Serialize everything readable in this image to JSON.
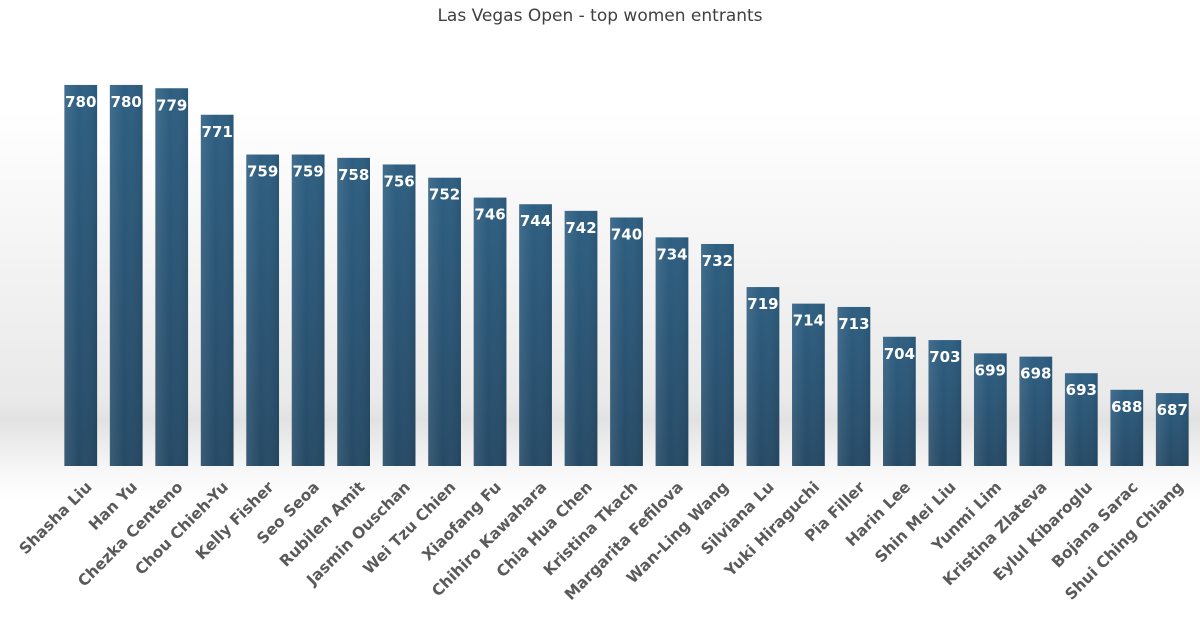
{
  "chart_data": {
    "type": "bar",
    "title": "Las Vegas Open - top women entrants",
    "xlabel": "",
    "ylabel": "",
    "categories": [
      "Shasha Liu",
      "Han Yu",
      "Chezka Centeno",
      "Chou Chieh-Yu",
      "Kelly Fisher",
      "Seo Seoa",
      "Rubilen Amit",
      "Jasmin Ouschan",
      "Wei Tzu Chien",
      "Xiaofang Fu",
      "Chihiro Kawahara",
      "Chia Hua Chen",
      "Kristina Tkach",
      "Margarita Fefilova",
      "Wan-Ling Wang",
      "Silviana Lu",
      "Yuki Hiraguchi",
      "Pia Filler",
      "Harin Lee",
      "Shin Mei Liu",
      "Yunmi Lim",
      "Kristina Zlateva",
      "Eylul Kibaroglu",
      "Bojana Sarac",
      "Shui Ching Chiang"
    ],
    "values": [
      780,
      780,
      779,
      771,
      759,
      759,
      758,
      756,
      752,
      746,
      744,
      742,
      740,
      734,
      732,
      719,
      714,
      713,
      704,
      703,
      699,
      698,
      693,
      688,
      687
    ],
    "ylim": [
      665,
      783
    ],
    "data_labels": "inside-end",
    "grid": false,
    "legend": "none",
    "colors": {
      "bar_top": "#2e5f82",
      "bar_bottom": "#264a66",
      "data_label": "#ffffff",
      "category_label": "#5a5a5a",
      "title": "#404040"
    }
  }
}
